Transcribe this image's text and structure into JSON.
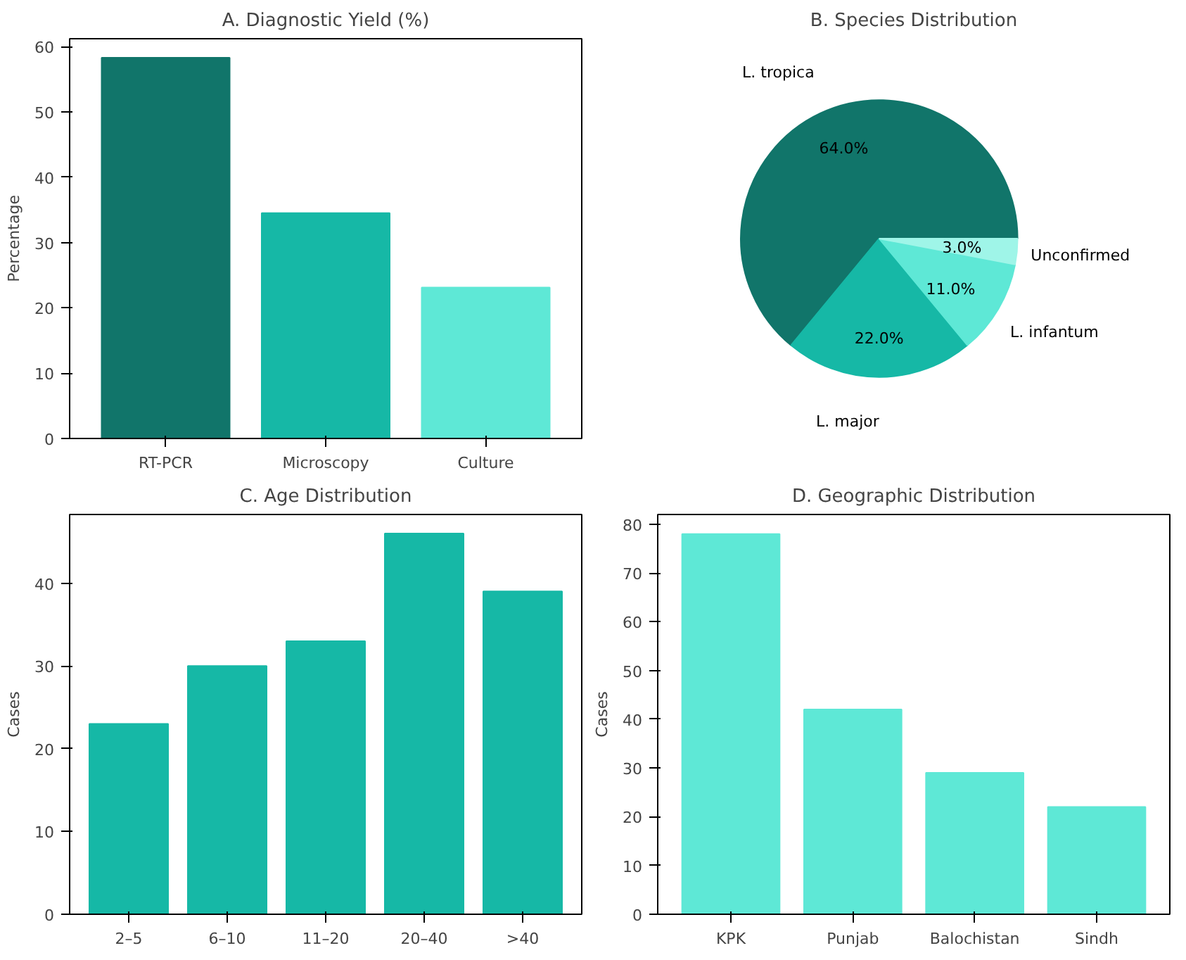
{
  "chart_data": [
    {
      "type": "bar",
      "title": "A. Diagnostic Yield (%)",
      "ylabel": "Percentage",
      "categories": [
        "RT-PCR",
        "Microscopy",
        "Culture"
      ],
      "values": [
        58.3,
        34.5,
        23.1
      ],
      "colors": [
        "#11756a",
        "#16b8a6",
        "#5ee8d6"
      ],
      "ylim": [
        0,
        61.2
      ],
      "yticks": [
        0,
        10,
        20,
        30,
        40,
        50,
        60
      ],
      "grid": false
    },
    {
      "type": "pie",
      "title": "B. Species Distribution",
      "categories": [
        "L. tropica",
        "L. major",
        "L. infantum",
        "Unconfirmed"
      ],
      "values": [
        64,
        22,
        11,
        3
      ],
      "colors": [
        "#11756a",
        "#16b8a6",
        "#5ee8d6",
        "#9ff5e8"
      ],
      "value_labels": [
        "64.0%",
        "22.0%",
        "11.0%",
        "3.0%"
      ]
    },
    {
      "type": "bar",
      "title": "C. Age Distribution",
      "ylabel": "Cases",
      "categories": [
        "2–5",
        "6–10",
        "11–20",
        "20–40",
        ">40"
      ],
      "values": [
        23,
        30,
        33,
        46,
        39
      ],
      "color": "#16b8a6",
      "ylim": [
        0,
        48.3
      ],
      "yticks": [
        0,
        10,
        20,
        30,
        40
      ],
      "grid": false
    },
    {
      "type": "bar",
      "title": "D. Geographic Distribution",
      "ylabel": "Cases",
      "categories": [
        "KPK",
        "Punjab",
        "Balochistan",
        "Sindh"
      ],
      "values": [
        78,
        42,
        29,
        22
      ],
      "color": "#5ee8d6",
      "ylim": [
        0,
        82
      ],
      "yticks": [
        0,
        10,
        20,
        30,
        40,
        50,
        60,
        70,
        80
      ],
      "grid": false
    }
  ]
}
